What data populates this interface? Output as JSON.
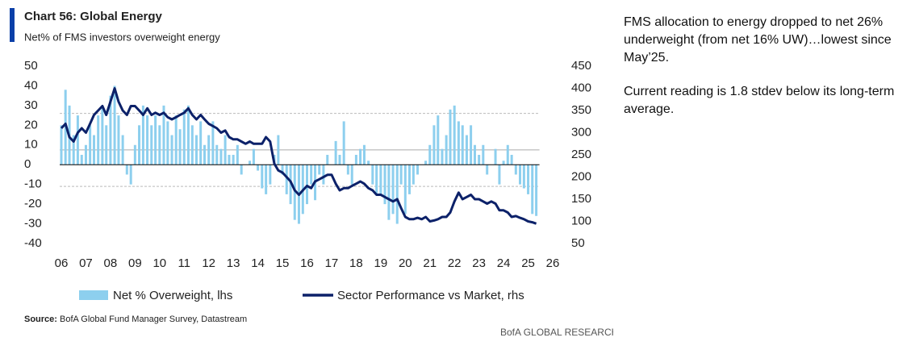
{
  "chart_data": {
    "type": "bar-line",
    "title": "Chart 56: Global Energy",
    "subtitle": "Net% of FMS investors overweight energy",
    "x": [
      2006,
      2006.17,
      2006.33,
      2006.5,
      2006.67,
      2006.83,
      2007,
      2007.17,
      2007.33,
      2007.5,
      2007.67,
      2007.83,
      2008,
      2008.17,
      2008.33,
      2008.5,
      2008.67,
      2008.83,
      2009,
      2009.17,
      2009.33,
      2009.5,
      2009.67,
      2009.83,
      2010,
      2010.17,
      2010.33,
      2010.5,
      2010.67,
      2010.83,
      2011,
      2011.17,
      2011.33,
      2011.5,
      2011.67,
      2011.83,
      2012,
      2012.17,
      2012.33,
      2012.5,
      2012.67,
      2012.83,
      2013,
      2013.17,
      2013.33,
      2013.5,
      2013.67,
      2013.83,
      2014,
      2014.17,
      2014.33,
      2014.5,
      2014.67,
      2014.83,
      2015,
      2015.17,
      2015.33,
      2015.5,
      2015.67,
      2015.83,
      2016,
      2016.17,
      2016.33,
      2016.5,
      2016.67,
      2016.83,
      2017,
      2017.17,
      2017.33,
      2017.5,
      2017.67,
      2017.83,
      2018,
      2018.17,
      2018.33,
      2018.5,
      2018.67,
      2018.83,
      2019,
      2019.17,
      2019.33,
      2019.5,
      2019.67,
      2019.83,
      2020,
      2020.17,
      2020.33,
      2020.5,
      2020.67,
      2020.83,
      2021,
      2021.17,
      2021.33,
      2021.5,
      2021.67,
      2021.83,
      2022,
      2022.17,
      2022.33,
      2022.5,
      2022.67,
      2022.83,
      2023,
      2023.17,
      2023.33,
      2023.5,
      2023.67,
      2023.83,
      2024,
      2024.17,
      2024.33,
      2024.5,
      2024.67,
      2024.83,
      2025,
      2025.17,
      2025.33
    ],
    "xlim": [
      2006,
      2026
    ],
    "xticks": [
      {
        "value": 2006,
        "label": "06"
      },
      {
        "value": 2007,
        "label": "07"
      },
      {
        "value": 2008,
        "label": "08"
      },
      {
        "value": 2009,
        "label": "09"
      },
      {
        "value": 2010,
        "label": "10"
      },
      {
        "value": 2011,
        "label": "11"
      },
      {
        "value": 2012,
        "label": "12"
      },
      {
        "value": 2013,
        "label": "13"
      },
      {
        "value": 2014,
        "label": "14"
      },
      {
        "value": 2015,
        "label": "15"
      },
      {
        "value": 2016,
        "label": "16"
      },
      {
        "value": 2017,
        "label": "17"
      },
      {
        "value": 2018,
        "label": "18"
      },
      {
        "value": 2019,
        "label": "19"
      },
      {
        "value": 2020,
        "label": "20"
      },
      {
        "value": 2021,
        "label": "21"
      },
      {
        "value": 2022,
        "label": "22"
      },
      {
        "value": 2023,
        "label": "23"
      },
      {
        "value": 2024,
        "label": "24"
      },
      {
        "value": 2025,
        "label": "25"
      },
      {
        "value": 2026,
        "label": "26"
      }
    ],
    "ylim": [
      -40,
      50
    ],
    "yticks": [
      50,
      40,
      30,
      20,
      10,
      0,
      -10,
      -20,
      -30,
      -40
    ],
    "y2lim": [
      50,
      450
    ],
    "y2ticks": [
      450,
      400,
      350,
      300,
      250,
      200,
      150,
      100,
      50
    ],
    "reference_lines": [
      {
        "value": 26,
        "style": "dashed"
      },
      {
        "value": 7.5,
        "style": "solid"
      },
      {
        "value": -11,
        "style": "dashed"
      }
    ],
    "series": [
      {
        "name": "Net % Overweight, lhs",
        "type": "bar",
        "color": "#8dcfee",
        "values": [
          20,
          38,
          30,
          15,
          25,
          5,
          10,
          20,
          15,
          25,
          30,
          20,
          35,
          40,
          25,
          15,
          -5,
          -10,
          10,
          20,
          30,
          25,
          20,
          25,
          20,
          30,
          22,
          15,
          25,
          18,
          28,
          30,
          20,
          15,
          22,
          10,
          15,
          22,
          10,
          8,
          15,
          5,
          5,
          10,
          -5,
          0,
          2,
          8,
          -3,
          -12,
          -15,
          -10,
          5,
          15,
          -5,
          -15,
          -20,
          -28,
          -30,
          -25,
          -20,
          -10,
          -18,
          -5,
          -10,
          5,
          0,
          12,
          5,
          22,
          -5,
          -10,
          5,
          8,
          10,
          2,
          -10,
          -15,
          -15,
          -20,
          -28,
          -25,
          -30,
          -10,
          -25,
          -15,
          -10,
          -5,
          0,
          2,
          10,
          20,
          25,
          8,
          15,
          28,
          30,
          22,
          20,
          15,
          20,
          10,
          5,
          10,
          -5,
          0,
          8,
          -10,
          2,
          10,
          5,
          -5,
          -10,
          -12,
          -15,
          -25,
          -26
        ]
      },
      {
        "name": "Sector Performance vs Market, rhs",
        "type": "line",
        "axis": "y2",
        "color": "#0c2169",
        "values": [
          310,
          320,
          290,
          280,
          300,
          310,
          300,
          320,
          340,
          350,
          360,
          340,
          370,
          400,
          370,
          350,
          340,
          360,
          360,
          350,
          340,
          355,
          340,
          345,
          340,
          345,
          335,
          330,
          335,
          340,
          345,
          355,
          340,
          330,
          340,
          330,
          320,
          315,
          310,
          300,
          305,
          290,
          285,
          285,
          280,
          275,
          280,
          275,
          275,
          275,
          290,
          280,
          230,
          215,
          210,
          200,
          190,
          170,
          160,
          170,
          180,
          175,
          190,
          195,
          200,
          205,
          205,
          185,
          170,
          175,
          175,
          180,
          185,
          190,
          185,
          175,
          170,
          160,
          160,
          155,
          150,
          145,
          150,
          130,
          110,
          105,
          105,
          108,
          105,
          110,
          100,
          102,
          105,
          110,
          110,
          120,
          145,
          165,
          150,
          155,
          160,
          150,
          150,
          145,
          140,
          145,
          140,
          125,
          125,
          120,
          110,
          112,
          108,
          105,
          100,
          98,
          95
        ]
      }
    ],
    "source_label": "Source:",
    "source": "BofA Global Fund Manager Survey, Datastream",
    "footer": "BofA GLOBAL RESEARCH"
  },
  "commentary": [
    "FMS allocation to energy dropped to net 26% underweight (from net 16% UW)…lowest since May’25.",
    "Current reading is 1.8 stdev below its long-term average."
  ]
}
